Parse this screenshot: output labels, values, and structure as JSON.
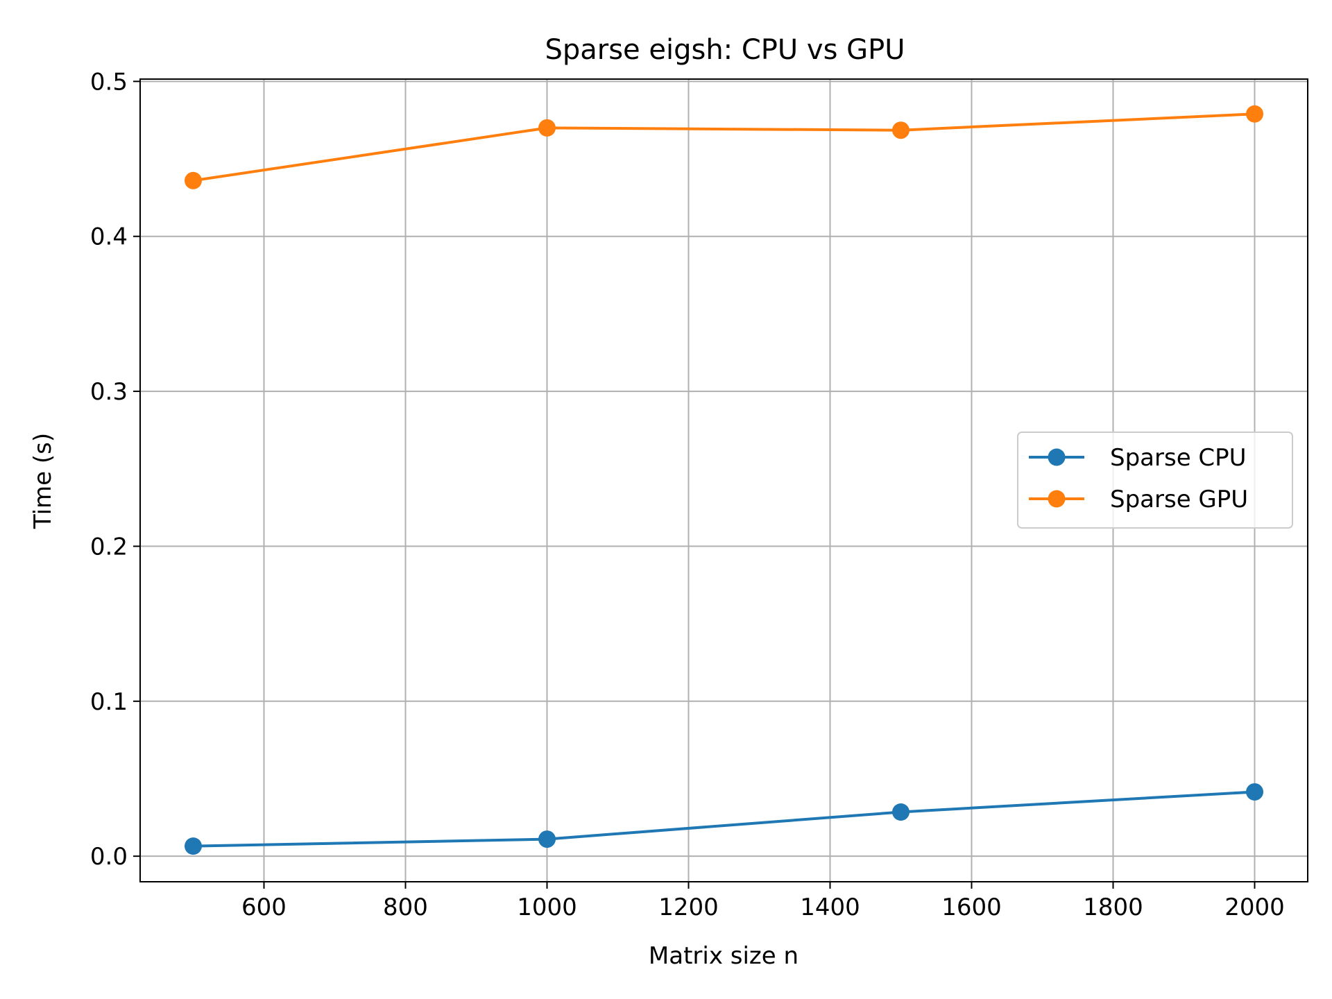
{
  "chart_data": {
    "type": "line",
    "title": "Sparse eigsh: CPU vs GPU",
    "xlabel": "Matrix size n",
    "ylabel": "Time (s)",
    "x": [
      500,
      1000,
      1500,
      2000
    ],
    "series": [
      {
        "name": "Sparse CPU",
        "color": "#1f77b4",
        "marker": "circle",
        "values": [
          0.0065,
          0.011,
          0.0285,
          0.0415
        ]
      },
      {
        "name": "Sparse GPU",
        "color": "#ff7f0e",
        "marker": "circle",
        "values": [
          0.436,
          0.47,
          0.4685,
          0.479
        ]
      }
    ],
    "xticks": [
      600,
      800,
      1000,
      1200,
      1400,
      1600,
      1800,
      2000
    ],
    "yticks": [
      0.0,
      0.1,
      0.2,
      0.3,
      0.4,
      0.5
    ],
    "ytick_labels": [
      "0.0",
      "0.1",
      "0.2",
      "0.3",
      "0.4",
      "0.5"
    ],
    "xlim": [
      425,
      2075
    ],
    "ylim": [
      -0.0165,
      0.5015
    ],
    "grid": true,
    "legend_position": "center-right"
  }
}
